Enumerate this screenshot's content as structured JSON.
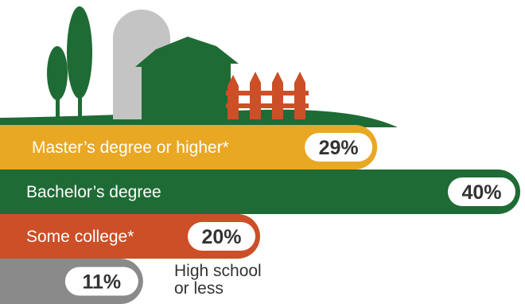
{
  "colors": {
    "masters": "#e9a823",
    "bachelors": "#1f6b35",
    "some_college": "#cc4f27",
    "high_school": "#8a8a8a",
    "tree": "#1f6b35",
    "silo": "#c4c4c4",
    "barn": "#1f6b35",
    "fence": "#cc4f27",
    "hill": "#1f6b35"
  },
  "chart_data": {
    "type": "bar",
    "orientation": "horizontal",
    "unit": "%",
    "categories": [
      "Master’s degree or higher*",
      "Bachelor’s degree",
      "Some college*",
      "High school\nor less"
    ],
    "values": [
      29,
      40,
      20,
      11
    ],
    "value_labels": [
      "29%",
      "40%",
      "20%",
      "11%"
    ],
    "xlim": [
      0,
      40
    ],
    "grid": false,
    "legend": "none"
  }
}
